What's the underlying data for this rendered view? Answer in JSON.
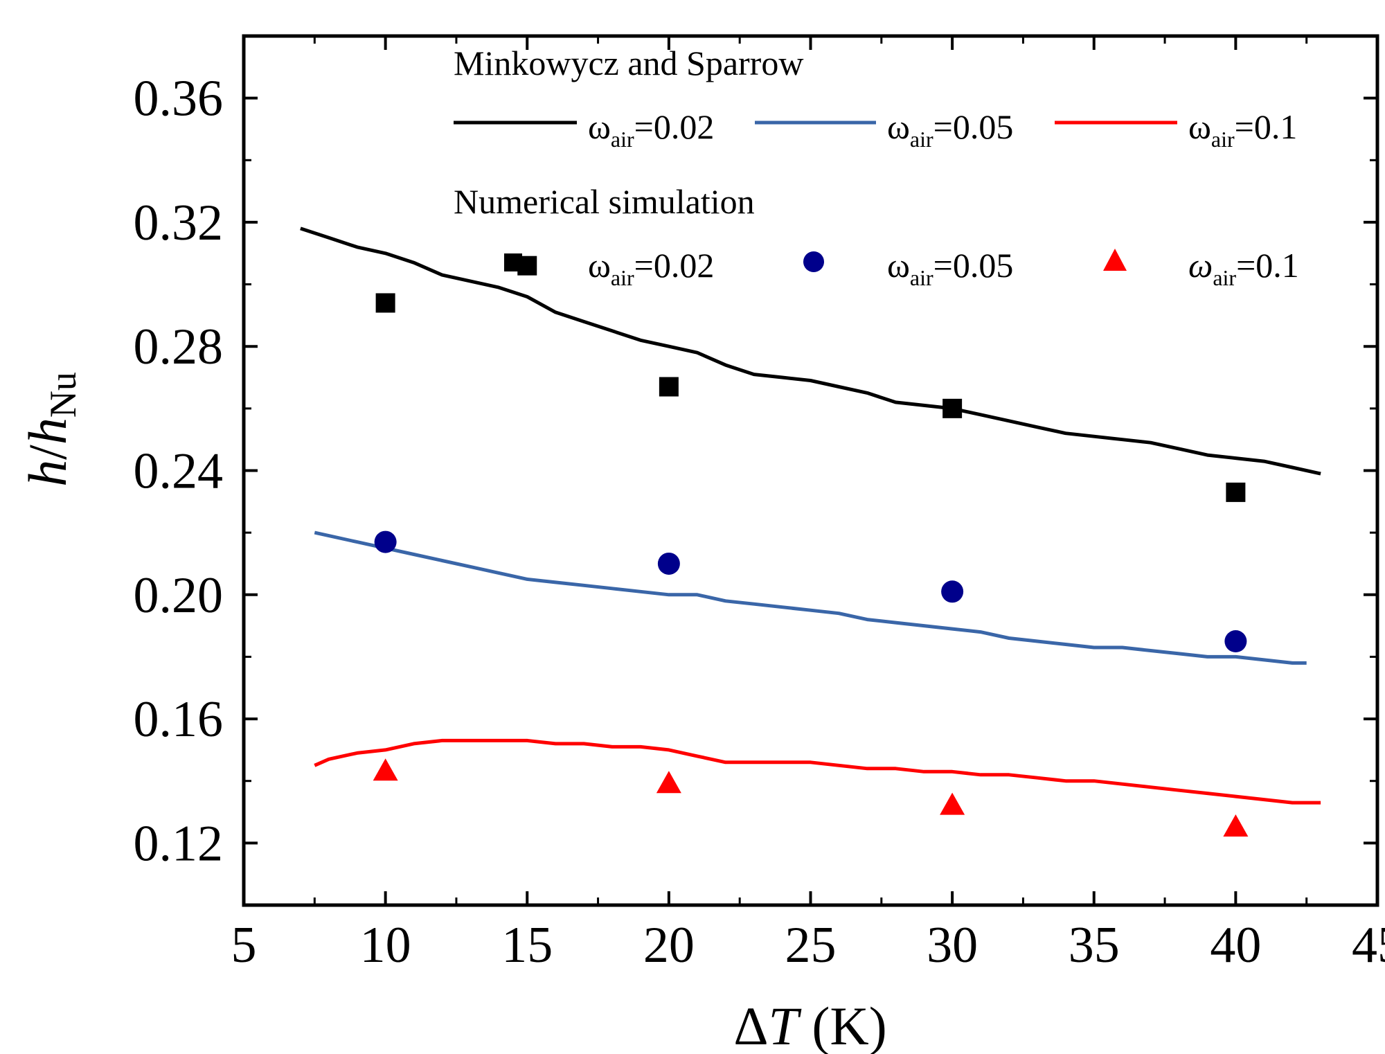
{
  "chart_data": {
    "type": "line",
    "xlabel": {
      "symbol": "Δ",
      "var": "T",
      "unit": " (K)"
    },
    "ylabel": {
      "num": "h",
      "slash": "/",
      "den": "h",
      "den_sub": "Nu"
    },
    "xlim": [
      5,
      45
    ],
    "ylim": [
      0.1,
      0.38
    ],
    "x_ticks": [
      "5",
      "10",
      "15",
      "20",
      "25",
      "30",
      "35",
      "40",
      "45"
    ],
    "x_tick_values": [
      5,
      10,
      15,
      20,
      25,
      30,
      35,
      40,
      45
    ],
    "y_ticks": [
      "0.12",
      "0.16",
      "0.20",
      "0.24",
      "0.28",
      "0.32",
      "0.36"
    ],
    "y_tick_values": [
      0.12,
      0.16,
      0.2,
      0.24,
      0.28,
      0.32,
      0.36
    ],
    "legend": {
      "group1_title": "Minkowycz and Sparrow",
      "group2_title": "Numerical simulation",
      "omega": "ω",
      "air": "air",
      "eq_labels": [
        "=0.02",
        "=0.05",
        "=0.1"
      ]
    },
    "line_series": [
      {
        "name": "ωair=0.02 (Minkowycz and Sparrow)",
        "color": "#000000",
        "x": [
          7,
          8,
          9,
          10,
          11,
          12,
          13,
          14,
          15,
          16,
          17,
          18,
          19,
          20,
          21,
          22,
          23,
          24,
          25,
          26,
          27,
          28,
          29,
          30,
          31,
          32,
          33,
          34,
          35,
          36,
          37,
          38,
          39,
          40,
          41,
          42,
          43
        ],
        "y": [
          0.318,
          0.315,
          0.312,
          0.31,
          0.307,
          0.303,
          0.301,
          0.299,
          0.296,
          0.291,
          0.288,
          0.285,
          0.282,
          0.28,
          0.278,
          0.274,
          0.271,
          0.27,
          0.269,
          0.267,
          0.265,
          0.262,
          0.261,
          0.26,
          0.258,
          0.256,
          0.254,
          0.252,
          0.251,
          0.25,
          0.249,
          0.247,
          0.245,
          0.244,
          0.243,
          0.241,
          0.239
        ]
      },
      {
        "name": "ωair=0.05 (Minkowycz and Sparrow)",
        "color": "#3a66a8",
        "x": [
          7.5,
          8,
          9,
          10,
          11,
          12,
          13,
          14,
          15,
          16,
          17,
          18,
          19,
          20,
          21,
          22,
          23,
          24,
          25,
          26,
          27,
          28,
          29,
          30,
          31,
          32,
          33,
          34,
          35,
          36,
          37,
          38,
          39,
          40,
          41,
          42,
          42.5
        ],
        "y": [
          0.22,
          0.219,
          0.217,
          0.215,
          0.213,
          0.211,
          0.209,
          0.207,
          0.205,
          0.204,
          0.203,
          0.202,
          0.201,
          0.2,
          0.2,
          0.198,
          0.197,
          0.196,
          0.195,
          0.194,
          0.192,
          0.191,
          0.19,
          0.189,
          0.188,
          0.186,
          0.185,
          0.184,
          0.183,
          0.183,
          0.182,
          0.181,
          0.18,
          0.18,
          0.179,
          0.178,
          0.178
        ]
      },
      {
        "name": "ωair=0.1 (Minkowycz and Sparrow)",
        "color": "#ff0000",
        "x": [
          7.5,
          8,
          9,
          10,
          11,
          12,
          13,
          14,
          15,
          16,
          17,
          18,
          19,
          20,
          21,
          22,
          23,
          24,
          25,
          26,
          27,
          28,
          29,
          30,
          31,
          32,
          33,
          34,
          35,
          36,
          37,
          38,
          39,
          40,
          41,
          42,
          43
        ],
        "y": [
          0.145,
          0.147,
          0.149,
          0.15,
          0.152,
          0.153,
          0.153,
          0.153,
          0.153,
          0.152,
          0.152,
          0.151,
          0.151,
          0.15,
          0.148,
          0.146,
          0.146,
          0.146,
          0.146,
          0.145,
          0.144,
          0.144,
          0.143,
          0.143,
          0.142,
          0.142,
          0.141,
          0.14,
          0.14,
          0.139,
          0.138,
          0.137,
          0.136,
          0.135,
          0.134,
          0.133,
          0.133
        ]
      }
    ],
    "scatter_series": [
      {
        "name": "ωair=0.02 (Numerical simulation)",
        "color": "#000000",
        "marker": "square",
        "x": [
          10,
          15,
          20,
          30,
          40
        ],
        "y": [
          0.294,
          0.306,
          0.267,
          0.26,
          0.233
        ]
      },
      {
        "name": "ωair=0.05 (Numerical simulation)",
        "color": "#00008b",
        "marker": "circle",
        "x": [
          10,
          20,
          30,
          40
        ],
        "y": [
          0.217,
          0.21,
          0.201,
          0.185
        ]
      },
      {
        "name": "ωair=0.1 (Numerical simulation)",
        "color": "#ff0000",
        "marker": "triangle",
        "x": [
          10,
          20,
          30,
          40
        ],
        "y": [
          0.143,
          0.139,
          0.132,
          0.125
        ]
      }
    ]
  }
}
